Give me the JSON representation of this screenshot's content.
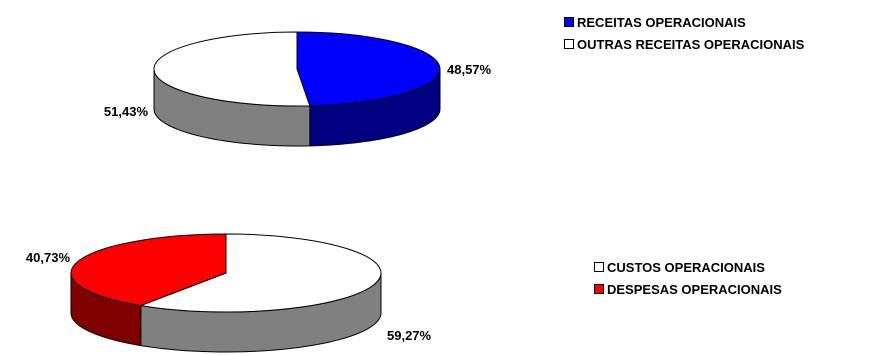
{
  "chart_data": [
    {
      "type": "pie",
      "title": "",
      "slices": [
        {
          "label": "RECEITAS OPERACIONAIS",
          "value": 48.57,
          "value_label": "48,57%",
          "color": "#0000FF",
          "side_color": "#000080"
        },
        {
          "label": "OUTRAS RECEITAS OPERACIONAIS",
          "value": 51.43,
          "value_label": "51,43%",
          "color": "#FFFFFF",
          "side_color": "#808080"
        }
      ],
      "style": "3d",
      "legend_position": "top-right"
    },
    {
      "type": "pie",
      "title": "",
      "slices": [
        {
          "label": "CUSTOS OPERACIONAIS",
          "value": 59.27,
          "value_label": "59,27%",
          "color": "#FFFFFF",
          "side_color": "#808080"
        },
        {
          "label": "DESPESAS OPERACIONAIS",
          "value": 40.73,
          "value_label": "40,73%",
          "color": "#FF0000",
          "side_color": "#800000"
        }
      ],
      "style": "3d",
      "legend_position": "right"
    }
  ]
}
